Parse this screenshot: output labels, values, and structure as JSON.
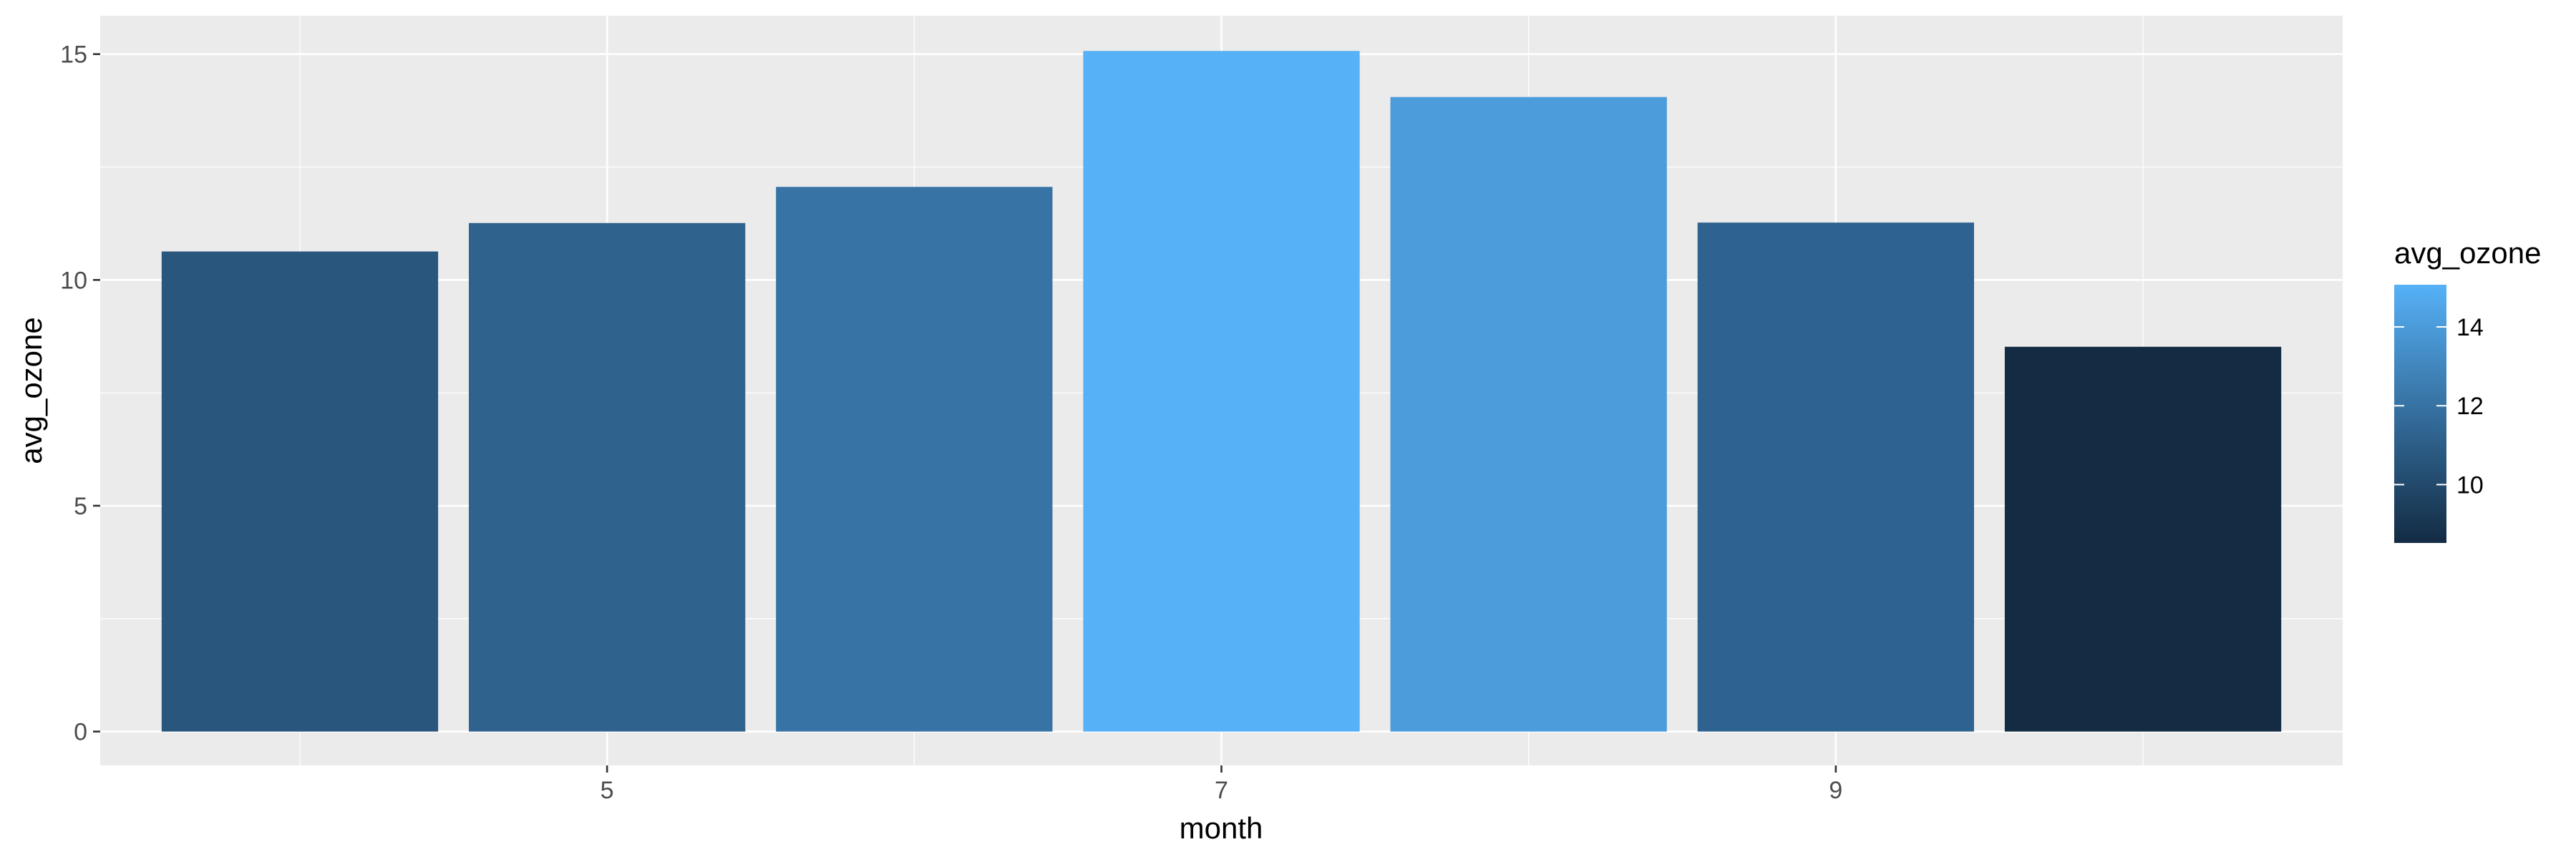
{
  "chart_data": {
    "type": "bar",
    "title": "",
    "xlabel": "month",
    "ylabel": "avg_ozone",
    "categories": [
      4,
      5,
      6,
      7,
      8,
      9,
      10
    ],
    "values": [
      10.63,
      11.26,
      12.06,
      15.07,
      14.05,
      11.27,
      8.52
    ],
    "xlim": [
      3.35,
      10.65
    ],
    "ylim": [
      -0.75,
      15.85
    ],
    "x_ticks": [
      5,
      7,
      9
    ],
    "y_ticks": [
      0,
      5,
      10,
      15
    ],
    "grid": true,
    "legend": {
      "title": "avg_ozone",
      "type": "colorbar",
      "placement": "right",
      "range": [
        8.52,
        15.07
      ],
      "ticks": [
        10,
        12,
        14
      ],
      "color_low": "#132b43",
      "color_high": "#56b1f7"
    }
  },
  "colors": {
    "panel_background": "#ebebeb",
    "grid_major": "#ffffff",
    "tick_color": "#333333"
  }
}
